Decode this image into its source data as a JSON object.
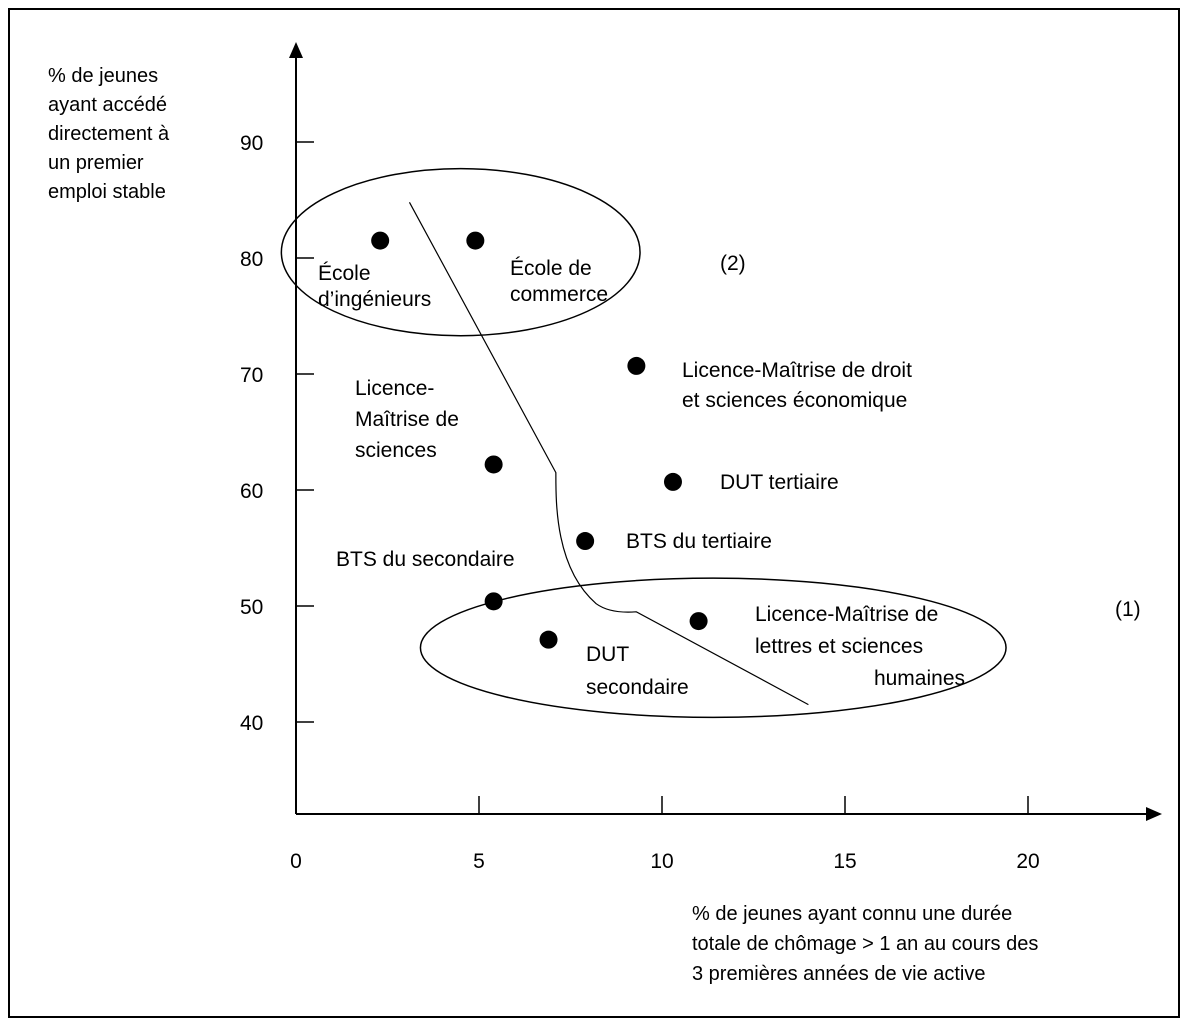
{
  "chart_data": {
    "type": "scatter",
    "title": "",
    "xlabel": [
      "% de jeunes ayant connu une durée",
      "totale de chômage > 1 an au cours des",
      "3 premières années de vie active"
    ],
    "ylabel": [
      "% de jeunes",
      "ayant accédé",
      "directement à",
      "un premier",
      "emploi stable"
    ],
    "xlim": [
      0,
      23
    ],
    "ylim": [
      30,
      100
    ],
    "x_ticks": [
      {
        "value": 0,
        "label": "0"
      },
      {
        "value": 5,
        "label": "5"
      },
      {
        "value": 10,
        "label": "10"
      },
      {
        "value": 15,
        "label": "15"
      },
      {
        "value": 20,
        "label": "20"
      }
    ],
    "y_ticks": [
      {
        "value": 40,
        "label": "40"
      },
      {
        "value": 50,
        "label": "50"
      },
      {
        "value": 60,
        "label": "60"
      },
      {
        "value": 70,
        "label": "70"
      },
      {
        "value": 80,
        "label": "80"
      },
      {
        "value": 90,
        "label": "90"
      }
    ],
    "points": [
      {
        "x": 2.3,
        "y": 81.5,
        "label": [
          "École",
          "d’ingénieurs"
        ]
      },
      {
        "x": 4.9,
        "y": 81.5,
        "label": [
          "École de",
          "commerce"
        ]
      },
      {
        "x": 9.3,
        "y": 70.7,
        "label": [
          "Licence-Maîtrise de droit",
          "et sciences économique"
        ]
      },
      {
        "x": 5.4,
        "y": 62.2,
        "label": [
          "Licence-",
          "Maîtrise de",
          "sciences"
        ]
      },
      {
        "x": 10.3,
        "y": 60.7,
        "label": [
          "DUT tertiaire"
        ]
      },
      {
        "x": 7.9,
        "y": 55.6,
        "label": [
          "BTS du tertiaire"
        ]
      },
      {
        "x": 5.4,
        "y": 50.4,
        "label": [
          "BTS du secondaire"
        ]
      },
      {
        "x": 6.9,
        "y": 47.1,
        "label": [
          "DUT",
          "secondaire"
        ]
      },
      {
        "x": 11.0,
        "y": 48.7,
        "label": [
          "Licence-Maîtrise de",
          "lettres et sciences",
          "humaines"
        ]
      }
    ],
    "separator_line": [
      {
        "x": 3.1,
        "y": 84.8
      },
      {
        "x": 7.1,
        "y": 61.5
      },
      {
        "x": 7.3,
        "y": 55.0
      },
      {
        "x": 8.2,
        "y": 50.2
      },
      {
        "x": 9.3,
        "y": 49.5
      },
      {
        "x": 14.0,
        "y": 41.5
      }
    ],
    "groups": [
      {
        "label": "(2)",
        "cx": 4.5,
        "cy": 80.5,
        "rx": 4.9,
        "ry": 7.2
      },
      {
        "label": "(1)",
        "cx": 11.4,
        "cy": 46.4,
        "rx": 8.0,
        "ry": 6.0
      }
    ],
    "grid": false,
    "colors": {
      "marker": "#000000",
      "line": "#000000",
      "background": "#ffffff"
    }
  }
}
